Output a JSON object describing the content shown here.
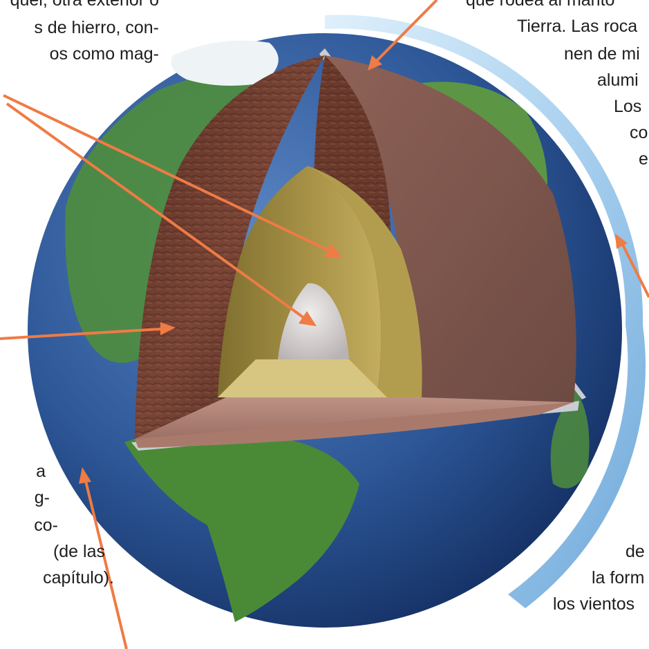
{
  "text_left_top": [
    "quel, otra exterior o",
    "s de hierro, con-",
    "os como mag-"
  ],
  "text_right_top": [
    "que rodea al manto",
    "Tierra. Las roca",
    "nen de mi",
    "alumi",
    "Los",
    "co",
    "e"
  ],
  "text_left_bottom": [
    "a",
    "g-",
    "co-",
    "(de las",
    "capítulo)."
  ],
  "text_right_bottom": [
    "de",
    "la form",
    "los vientos"
  ],
  "colors": {
    "arrow": "#ef7b45",
    "ocean": "#2f5a9a",
    "atmosphere": "#8fc2e8",
    "crust_edge": "#c9cdd2",
    "mantle": "#6e3e30",
    "lower_mantle": "#9c7064",
    "outer_core": "#a99448",
    "inner_core": "#d9d4d4",
    "land": "#4f8d3c"
  }
}
